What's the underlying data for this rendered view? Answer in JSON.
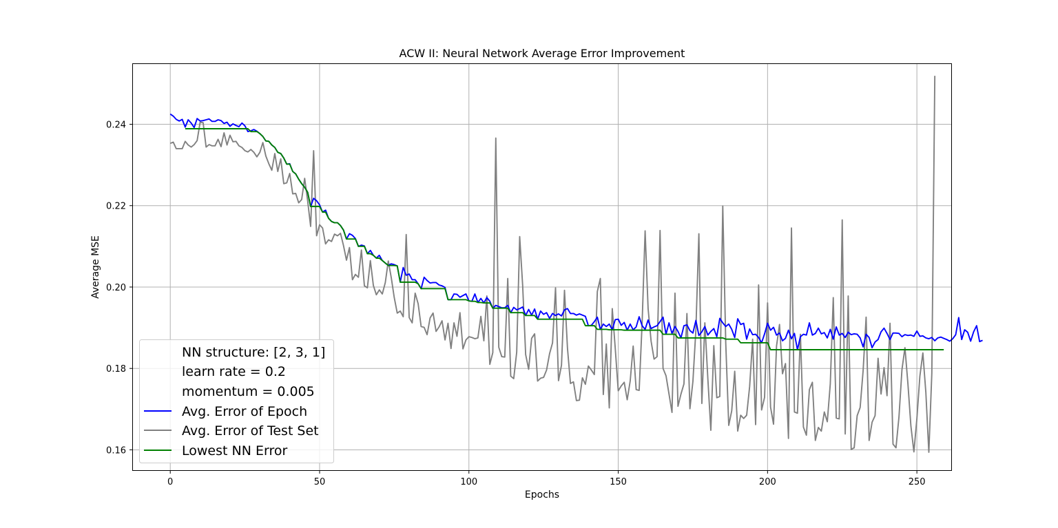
{
  "chart_data": {
    "type": "line",
    "title": "ACW II: Neural Network Average Error Improvement",
    "xlabel": "Epochs",
    "ylabel": "Average MSE",
    "xlim": [
      -12.5,
      261.5
    ],
    "ylim": [
      0.155,
      0.2548
    ],
    "grid": true,
    "legend_position": "lower-left",
    "x_ticks": [
      0,
      50,
      100,
      150,
      200,
      250
    ],
    "y_ticks": [
      0.16,
      0.18,
      0.2,
      0.22,
      0.24
    ],
    "x_tick_labels": [
      "0",
      "50",
      "100",
      "150",
      "200",
      "250"
    ],
    "y_tick_labels": [
      "0.16",
      "0.18",
      "0.20",
      "0.22",
      "0.24"
    ],
    "legend_text_entries": [
      "NN structure: [2, 3, 1]",
      "learn rate = 0.2",
      "momentum = 0.005"
    ],
    "series": [
      {
        "name": "Avg. Error of Epoch",
        "color": "#0000ff",
        "x_start": 0,
        "values": [
          0.2425,
          0.242,
          0.2412,
          0.2408,
          0.2412,
          0.2393,
          0.2411,
          0.2403,
          0.2392,
          0.2414,
          0.2408,
          0.2409,
          0.2411,
          0.2413,
          0.2407,
          0.2407,
          0.2411,
          0.2409,
          0.2402,
          0.2405,
          0.2395,
          0.2401,
          0.2397,
          0.2394,
          0.2403,
          0.2396,
          0.2382,
          0.2384,
          0.2387,
          0.2383,
          0.2377,
          0.237,
          0.2359,
          0.2358,
          0.2349,
          0.2343,
          0.2331,
          0.2328,
          0.2317,
          0.2302,
          0.2303,
          0.2284,
          0.2278,
          0.2265,
          0.2254,
          0.2245,
          0.2233,
          0.2198,
          0.2218,
          0.2212,
          0.2202,
          0.2184,
          0.2189,
          0.2169,
          0.2161,
          0.2158,
          0.2158,
          0.2151,
          0.214,
          0.2118,
          0.2131,
          0.2127,
          0.2119,
          0.21,
          0.2103,
          0.2101,
          0.2082,
          0.209,
          0.2078,
          0.2071,
          0.2078,
          0.2065,
          0.2059,
          0.2053,
          0.2057,
          0.2055,
          0.2052,
          0.2012,
          0.2048,
          0.2029,
          0.2032,
          0.2018,
          0.2018,
          0.2008,
          0.1996,
          0.2024,
          0.2016,
          0.201,
          0.2011,
          0.2011,
          0.2005,
          0.2003,
          0.1999,
          0.1969,
          0.1969,
          0.1983,
          0.1982,
          0.1975,
          0.1979,
          0.1983,
          0.1966,
          0.1965,
          0.1983,
          0.1962,
          0.1972,
          0.1961,
          0.1974,
          0.1965,
          0.1948,
          0.1955,
          0.1952,
          0.1949,
          0.1949,
          0.1955,
          0.1937,
          0.195,
          0.1944,
          0.1947,
          0.1951,
          0.193,
          0.1945,
          0.1931,
          0.1946,
          0.1921,
          0.1941,
          0.1933,
          0.1937,
          0.1923,
          0.1935,
          0.193,
          0.1934,
          0.1929,
          0.1944,
          0.1947,
          0.1935,
          0.1935,
          0.1931,
          0.1934,
          0.1931,
          0.1928,
          0.1905,
          0.1906,
          0.1915,
          0.1926,
          0.1896,
          0.1909,
          0.1903,
          0.1909,
          0.1895,
          0.192,
          0.1921,
          0.1906,
          0.1913,
          0.1894,
          0.1909,
          0.1895,
          0.1902,
          0.1927,
          0.1905,
          0.1896,
          0.1919,
          0.1898,
          0.1902,
          0.1905,
          0.1915,
          0.1926,
          0.1884,
          0.1912,
          0.1886,
          0.1903,
          0.1891,
          0.1875,
          0.1905,
          0.1907,
          0.1893,
          0.1887,
          0.1918,
          0.1881,
          0.189,
          0.1903,
          0.1882,
          0.1891,
          0.1898,
          0.1878,
          0.1923,
          0.1912,
          0.1903,
          0.1909,
          0.1896,
          0.1876,
          0.1922,
          0.1908,
          0.1911,
          0.1872,
          0.1897,
          0.1883,
          0.1884,
          0.1876,
          0.1863,
          0.1885,
          0.1911,
          0.1894,
          0.1901,
          0.1882,
          0.1887,
          0.1868,
          0.1874,
          0.1894,
          0.1873,
          0.1886,
          0.1846,
          0.1878,
          0.1884,
          0.1882,
          0.1912,
          0.1882,
          0.1886,
          0.1899,
          0.1885,
          0.1888,
          0.1875,
          0.1896,
          0.1872,
          0.1902,
          0.1882,
          0.1886,
          0.1876,
          0.1889,
          0.1883,
          0.1885,
          0.1884,
          0.1875,
          0.1853,
          0.1884,
          0.1876,
          0.1851,
          0.1865,
          0.1871,
          0.189,
          0.1899,
          0.1886,
          0.1871,
          0.1887,
          0.1887,
          0.1886,
          0.1878,
          0.1883,
          0.1881,
          0.1882,
          0.1879,
          0.1892,
          0.1879,
          0.188,
          0.1875,
          0.1873,
          0.1876,
          0.1868,
          0.1875,
          0.1877,
          0.1874,
          0.1871,
          0.1867,
          0.1873,
          0.1883,
          0.1925,
          0.1871,
          0.1895,
          0.1889,
          0.1867,
          0.189,
          0.1905,
          0.1866,
          0.1869
        ]
      },
      {
        "name": "Avg. Error of Test Set",
        "color": "#808080",
        "x_start": 0,
        "values": [
          0.2353,
          0.2356,
          0.234,
          0.234,
          0.234,
          0.2358,
          0.2349,
          0.2344,
          0.235,
          0.236,
          0.2405,
          0.2404,
          0.2344,
          0.235,
          0.2347,
          0.2347,
          0.2363,
          0.2345,
          0.2379,
          0.2349,
          0.2373,
          0.2357,
          0.2358,
          0.2347,
          0.2343,
          0.2335,
          0.2332,
          0.2338,
          0.2331,
          0.232,
          0.2331,
          0.2355,
          0.2322,
          0.2303,
          0.2287,
          0.2328,
          0.2284,
          0.2315,
          0.2254,
          0.2256,
          0.2279,
          0.2229,
          0.223,
          0.2207,
          0.2215,
          0.2267,
          0.2212,
          0.2149,
          0.2335,
          0.2126,
          0.2153,
          0.2145,
          0.2106,
          0.2116,
          0.2112,
          0.213,
          0.2126,
          0.2132,
          0.2102,
          0.2066,
          0.2097,
          0.2018,
          0.2031,
          0.2024,
          0.2091,
          0.2003,
          0.1998,
          0.2065,
          0.2004,
          0.1981,
          0.1993,
          0.1983,
          0.2011,
          0.2064,
          0.2023,
          0.1974,
          0.1936,
          0.1941,
          0.1927,
          0.2129,
          0.1925,
          0.1912,
          0.1985,
          0.1959,
          0.1903,
          0.1901,
          0.1883,
          0.1924,
          0.1936,
          0.1891,
          0.1902,
          0.1917,
          0.187,
          0.1911,
          0.1849,
          0.1912,
          0.1879,
          0.1937,
          0.1848,
          0.187,
          0.1878,
          0.1876,
          0.1873,
          0.1875,
          0.1928,
          0.1868,
          0.1978,
          0.181,
          0.1839,
          0.2366,
          0.1852,
          0.1829,
          0.1828,
          0.2021,
          0.1781,
          0.1775,
          0.184,
          0.2124,
          0.2003,
          0.1834,
          0.1798,
          0.1874,
          0.1885,
          0.1769,
          0.1776,
          0.1778,
          0.1796,
          0.1836,
          0.1863,
          0.1998,
          0.177,
          0.1808,
          0.1992,
          0.185,
          0.1763,
          0.1767,
          0.1721,
          0.1722,
          0.1777,
          0.1761,
          0.1806,
          0.1796,
          0.1785,
          0.1989,
          0.2021,
          0.1736,
          0.186,
          0.1703,
          0.1947,
          0.1849,
          0.1745,
          0.1757,
          0.1766,
          0.1723,
          0.1769,
          0.1855,
          0.1748,
          0.1746,
          0.1912,
          0.2138,
          0.1947,
          0.1867,
          0.1823,
          0.1829,
          0.2139,
          0.18,
          0.1782,
          0.1737,
          0.1692,
          0.1985,
          0.1707,
          0.1737,
          0.1762,
          0.1935,
          0.1701,
          0.1768,
          0.1895,
          0.2131,
          0.1714,
          0.1912,
          0.1775,
          0.1648,
          0.1856,
          0.1728,
          0.1731,
          0.2199,
          0.1862,
          0.166,
          0.1696,
          0.1793,
          0.1646,
          0.1685,
          0.1677,
          0.1685,
          0.1756,
          0.1872,
          0.1662,
          0.2005,
          0.1698,
          0.1729,
          0.1961,
          0.1705,
          0.1663,
          0.1855,
          0.1908,
          0.1787,
          0.1812,
          0.1628,
          0.2145,
          0.1693,
          0.169,
          0.1884,
          0.1656,
          0.1636,
          0.1748,
          0.1766,
          0.1623,
          0.1655,
          0.1646,
          0.1693,
          0.1669,
          0.1762,
          0.1974,
          0.1678,
          0.1676,
          0.2165,
          0.1639,
          0.1978,
          0.1601,
          0.1605,
          0.1684,
          0.1704,
          0.1795,
          0.1926,
          0.1623,
          0.1668,
          0.1684,
          0.1825,
          0.1737,
          0.1802,
          0.1733,
          0.1911,
          0.1614,
          0.1605,
          0.1681,
          0.1797,
          0.1851,
          0.1762,
          0.1658,
          0.1595,
          0.1677,
          0.1781,
          0.1838,
          0.1741,
          0.1594,
          0.1788,
          0.2519
        ]
      },
      {
        "name": "Lowest NN Error",
        "color": "#008000",
        "x_start": 5,
        "values": [
          0.2389,
          0.2389,
          0.2389,
          0.2389,
          0.2389,
          0.2389,
          0.2389,
          0.2389,
          0.2389,
          0.2389,
          0.2389,
          0.2389,
          0.2389,
          0.2389,
          0.2389,
          0.2389,
          0.2389,
          0.2389,
          0.2389,
          0.2389,
          0.2389,
          0.2389,
          0.2382,
          0.2382,
          0.2382,
          0.2377,
          0.237,
          0.2359,
          0.2358,
          0.2349,
          0.2343,
          0.2331,
          0.2328,
          0.2317,
          0.2302,
          0.2302,
          0.2284,
          0.2278,
          0.2265,
          0.2254,
          0.2245,
          0.2233,
          0.2198,
          0.2198,
          0.2198,
          0.2198,
          0.2184,
          0.2184,
          0.2169,
          0.2161,
          0.2158,
          0.2158,
          0.2151,
          0.214,
          0.2118,
          0.2118,
          0.2118,
          0.2118,
          0.21,
          0.21,
          0.21,
          0.2082,
          0.2082,
          0.2078,
          0.2071,
          0.2071,
          0.2065,
          0.2059,
          0.2053,
          0.2053,
          0.2053,
          0.2052,
          0.2012,
          0.2012,
          0.2012,
          0.2012,
          0.2012,
          0.2012,
          0.2008,
          0.1996,
          0.1996,
          0.1996,
          0.1996,
          0.1996,
          0.1996,
          0.1996,
          0.1996,
          0.1996,
          0.1969,
          0.1969,
          0.1969,
          0.1969,
          0.1969,
          0.1969,
          0.1969,
          0.1966,
          0.1965,
          0.1965,
          0.1962,
          0.1962,
          0.1961,
          0.1961,
          0.1961,
          0.1948,
          0.1948,
          0.1948,
          0.1948,
          0.1948,
          0.1948,
          0.1937,
          0.1937,
          0.1937,
          0.1937,
          0.1937,
          0.193,
          0.193,
          0.193,
          0.193,
          0.1921,
          0.1921,
          0.1921,
          0.1921,
          0.1921,
          0.1921,
          0.1921,
          0.1921,
          0.1921,
          0.1921,
          0.1921,
          0.1921,
          0.1921,
          0.1921,
          0.1921,
          0.1921,
          0.1905,
          0.1905,
          0.1905,
          0.1905,
          0.1896,
          0.1896,
          0.1896,
          0.1896,
          0.1895,
          0.1895,
          0.1895,
          0.1895,
          0.1895,
          0.1894,
          0.1894,
          0.1894,
          0.1894,
          0.1894,
          0.1894,
          0.1894,
          0.1894,
          0.1894,
          0.1894,
          0.1894,
          0.1894,
          0.1894,
          0.1884,
          0.1884,
          0.1884,
          0.1884,
          0.1884,
          0.1875,
          0.1875,
          0.1875,
          0.1875,
          0.1875,
          0.1875,
          0.1875,
          0.1875,
          0.1875,
          0.1875,
          0.1875,
          0.1875,
          0.1875,
          0.1875,
          0.1875,
          0.1875,
          0.1872,
          0.1872,
          0.1872,
          0.1872,
          0.1872,
          0.1863,
          0.1863,
          0.1863,
          0.1863,
          0.1863,
          0.1863,
          0.1863,
          0.1863,
          0.1863,
          0.1863,
          0.1846,
          0.1846,
          0.1846,
          0.1846,
          0.1846,
          0.1846,
          0.1846,
          0.1846,
          0.1846,
          0.1846,
          0.1846,
          0.1846,
          0.1846,
          0.1846,
          0.1846,
          0.1846,
          0.1846,
          0.1846,
          0.1846,
          0.1846,
          0.1846,
          0.1846,
          0.1846,
          0.1846,
          0.1846,
          0.1846,
          0.1846,
          0.1846,
          0.1846,
          0.1846,
          0.1846,
          0.1846,
          0.1846,
          0.1846,
          0.1846,
          0.1846,
          0.1846,
          0.1846,
          0.1846,
          0.1846,
          0.1846,
          0.1846,
          0.1846,
          0.1846,
          0.1846,
          0.1846,
          0.1846,
          0.1846,
          0.1846,
          0.1846,
          0.1846,
          0.1846,
          0.1846,
          0.1846,
          0.1846,
          0.1846,
          0.1846,
          0.1846,
          0.1846
        ]
      }
    ]
  }
}
